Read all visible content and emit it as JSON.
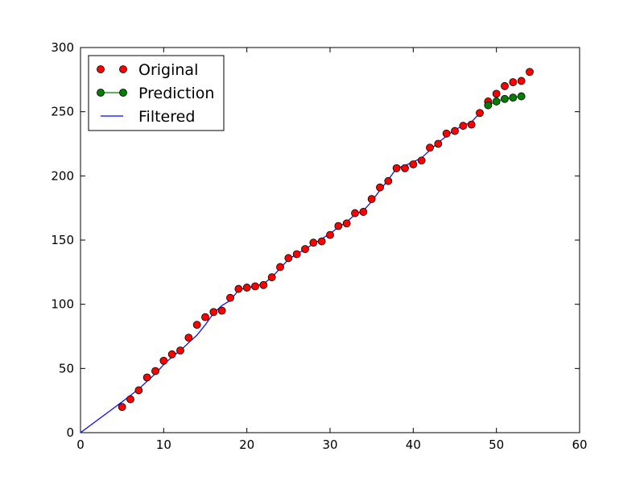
{
  "chart_data": {
    "type": "scatter",
    "title": "",
    "xlabel": "",
    "ylabel": "",
    "xlim": [
      0,
      60
    ],
    "ylim": [
      0,
      300
    ],
    "x_ticks": [
      0,
      10,
      20,
      30,
      40,
      50,
      60
    ],
    "y_ticks": [
      0,
      50,
      100,
      150,
      200,
      250,
      300
    ],
    "grid": false,
    "legend_position": "top-left",
    "series": [
      {
        "name": "Original",
        "style": "markers",
        "color": "#ff0000",
        "x": [
          5,
          6,
          7,
          8,
          9,
          10,
          11,
          12,
          13,
          14,
          15,
          16,
          17,
          18,
          19,
          20,
          21,
          22,
          23,
          24,
          25,
          26,
          27,
          28,
          29,
          30,
          31,
          32,
          33,
          34,
          35,
          36,
          37,
          38,
          39,
          40,
          41,
          42,
          43,
          44,
          45,
          46,
          47,
          48,
          49,
          50,
          51,
          52,
          53,
          54
        ],
        "y": [
          20,
          26,
          33,
          43,
          48,
          56,
          61,
          64,
          74,
          84,
          90,
          94,
          95,
          105,
          112,
          113,
          114,
          115,
          121,
          129,
          136,
          139,
          143,
          148,
          149,
          154,
          161,
          163,
          171,
          172,
          182,
          191,
          196,
          206,
          206,
          209,
          212,
          222,
          225,
          233,
          235,
          239,
          240,
          249,
          258,
          264,
          270,
          273,
          274,
          281
        ]
      },
      {
        "name": "Prediction",
        "style": "line-markers",
        "color": "#007f00",
        "x": [
          49,
          50,
          51,
          52,
          53
        ],
        "y": [
          255,
          258,
          260,
          261,
          262
        ]
      },
      {
        "name": "Filtered",
        "style": "line",
        "color": "#0000ff",
        "x": [
          0,
          5,
          6,
          7,
          8,
          9,
          10,
          11,
          12,
          13,
          14,
          15,
          16,
          17,
          18,
          19,
          20,
          21,
          22,
          23,
          24,
          25,
          26,
          27,
          28,
          29,
          30,
          31,
          32,
          33,
          34,
          35,
          36,
          37,
          38,
          39,
          40,
          41,
          42,
          43,
          44,
          45,
          46,
          47,
          48
        ],
        "y": [
          0,
          24,
          29,
          34,
          40,
          46,
          53,
          59,
          64,
          70,
          76,
          84,
          93,
          99,
          103,
          111,
          113,
          114,
          116,
          121,
          128,
          135,
          139,
          143,
          147,
          151,
          155,
          160,
          164,
          170,
          173,
          180,
          189,
          197,
          206,
          208,
          211,
          214,
          220,
          226,
          231,
          236,
          239,
          242,
          249
        ]
      }
    ]
  }
}
